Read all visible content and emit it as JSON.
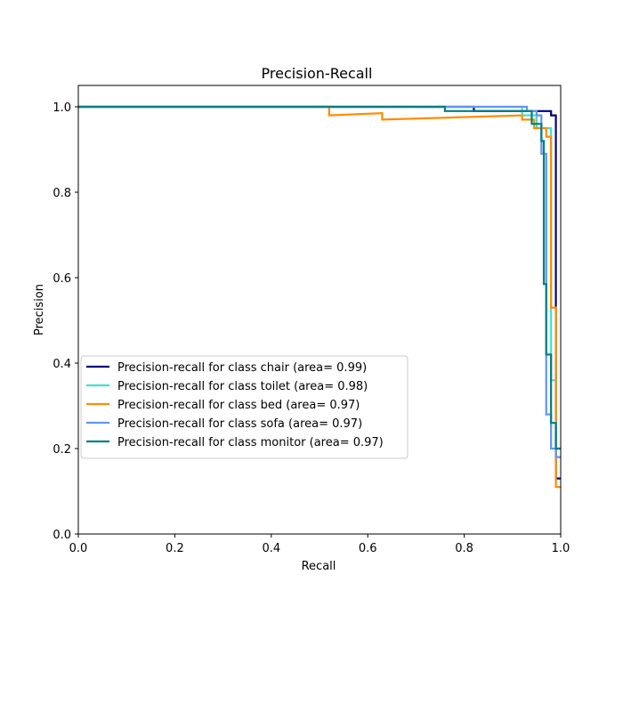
{
  "chart_data": {
    "type": "line",
    "title": "Precision-Recall",
    "xlabel": "Recall",
    "ylabel": "Precision",
    "xlim": [
      0.0,
      1.0
    ],
    "ylim": [
      0.0,
      1.05
    ],
    "xticks": [
      0.0,
      0.2,
      0.4,
      0.6,
      0.8,
      1.0
    ],
    "yticks": [
      0.0,
      0.2,
      0.4,
      0.6,
      0.8,
      1.0
    ],
    "xtick_labels": [
      "0.0",
      "0.2",
      "0.4",
      "0.6",
      "0.8",
      "1.0"
    ],
    "ytick_labels": [
      "0.0",
      "0.2",
      "0.4",
      "0.6",
      "0.8",
      "1.0"
    ],
    "grid": false,
    "legend_position": "center-left",
    "series": [
      {
        "name": "Precision-recall for class chair (area= 0.99)",
        "color": "#000080",
        "x": [
          0.0,
          0.82,
          0.82,
          0.98,
          0.98,
          0.99,
          0.99,
          1.0
        ],
        "y": [
          1.0,
          1.0,
          0.99,
          0.99,
          0.98,
          0.98,
          0.13,
          0.13
        ]
      },
      {
        "name": "Precision-recall for class toilet (area= 0.98)",
        "color": "#40E0D0",
        "x": [
          0.0,
          0.92,
          0.92,
          0.95,
          0.95,
          0.98,
          0.98,
          0.99,
          0.99,
          1.0
        ],
        "y": [
          1.0,
          1.0,
          0.98,
          0.98,
          0.95,
          0.95,
          0.36,
          0.36,
          0.2,
          0.2
        ]
      },
      {
        "name": "Precision-recall for class bed (area= 0.97)",
        "color": "#FF8C00",
        "x": [
          0.0,
          0.52,
          0.52,
          0.63,
          0.63,
          0.92,
          0.92,
          0.945,
          0.945,
          0.97,
          0.97,
          0.98,
          0.98,
          0.99,
          0.99,
          1.0
        ],
        "y": [
          1.0,
          1.0,
          0.98,
          0.985,
          0.97,
          0.98,
          0.97,
          0.97,
          0.95,
          0.95,
          0.93,
          0.93,
          0.53,
          0.53,
          0.11,
          0.11
        ]
      },
      {
        "name": "Precision-recall for class sofa (area= 0.97)",
        "color": "#6495ED",
        "x": [
          0.0,
          0.93,
          0.93,
          0.95,
          0.95,
          0.96,
          0.96,
          0.97,
          0.97,
          0.98,
          0.98,
          0.99,
          0.99,
          1.0
        ],
        "y": [
          1.0,
          1.0,
          0.99,
          0.99,
          0.98,
          0.98,
          0.89,
          0.89,
          0.28,
          0.28,
          0.2,
          0.2,
          0.18,
          0.18
        ]
      },
      {
        "name": "Precision-recall for class monitor (area= 0.97)",
        "color": "#008080",
        "x": [
          0.0,
          0.76,
          0.76,
          0.94,
          0.94,
          0.96,
          0.96,
          0.965,
          0.965,
          0.97,
          0.97,
          0.98,
          0.98,
          0.99,
          0.99,
          1.0
        ],
        "y": [
          1.0,
          1.0,
          0.99,
          0.99,
          0.96,
          0.96,
          0.92,
          0.92,
          0.585,
          0.585,
          0.42,
          0.42,
          0.26,
          0.26,
          0.2,
          0.2
        ]
      }
    ]
  }
}
